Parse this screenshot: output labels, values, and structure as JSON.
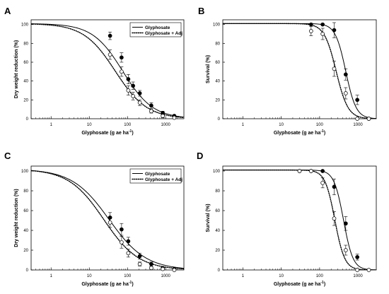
{
  "chart_data": [
    {
      "type": "scatter",
      "panel": "A",
      "xlabel": "Glyphosate (g ae ha",
      "xlabel_sup": "-1",
      "xlabel_end": ")",
      "ylabel": "Dry weight reduction (%)",
      "xscale": "log",
      "xlim": [
        0.3,
        3000
      ],
      "ylim": [
        0,
        105
      ],
      "xticks": [
        1,
        10,
        100,
        1000
      ],
      "yticks": [
        0,
        20,
        40,
        60,
        80,
        100
      ],
      "legend": {
        "position": "top-right",
        "entries": [
          "Glyphosate",
          "Glyphosate + Adj"
        ]
      },
      "series": [
        {
          "name": "Glyphosate",
          "style": "solid",
          "marker": "filled",
          "x": [
            35,
            70,
            105,
            140,
            210,
            420,
            840,
            1680
          ],
          "y": [
            88,
            65,
            42,
            35,
            27,
            14,
            6,
            3
          ],
          "err": [
            4,
            5,
            5,
            4,
            3,
            3,
            2,
            1
          ],
          "curve": {
            "top": 101,
            "ed50": 75,
            "slope": 1.1
          }
        },
        {
          "name": "Glyphosate + Adj",
          "style": "dotted",
          "marker": "open",
          "x": [
            35,
            70,
            105,
            140,
            210,
            420,
            840,
            1680
          ],
          "y": [
            68,
            50,
            30,
            24,
            17,
            8,
            3,
            1
          ],
          "err": [
            5,
            5,
            5,
            4,
            3,
            2,
            2,
            1
          ],
          "curve": {
            "top": 101,
            "ed50": 48,
            "slope": 1.05
          }
        }
      ]
    },
    {
      "type": "scatter",
      "panel": "B",
      "xlabel": "Glyphosate (g ae ha",
      "xlabel_sup": "-1",
      "xlabel_end": ")",
      "ylabel": "Survival (%)",
      "xscale": "log",
      "xlim": [
        0.3,
        3000
      ],
      "ylim": [
        0,
        105
      ],
      "xticks": [
        1,
        10,
        100,
        1000
      ],
      "yticks": [
        0,
        20,
        40,
        60,
        80,
        100
      ],
      "series": [
        {
          "name": "Glyphosate",
          "style": "solid",
          "marker": "filled",
          "x": [
            60,
            120,
            240,
            480,
            960,
            1920
          ],
          "y": [
            100,
            100,
            94,
            47,
            20,
            0
          ],
          "err": [
            0,
            0,
            8,
            6,
            5,
            0
          ],
          "curve": {
            "top": 101,
            "ed50": 480,
            "slope": 3.2
          }
        },
        {
          "name": "Glyphosate + Adj",
          "style": "dotted",
          "marker": "open",
          "x": [
            60,
            120,
            240,
            480,
            960,
            1920
          ],
          "y": [
            93,
            90,
            53,
            27,
            0,
            0
          ],
          "err": [
            5,
            6,
            8,
            6,
            0,
            0
          ],
          "curve": {
            "top": 101,
            "ed50": 270,
            "slope": 2.8
          }
        }
      ]
    },
    {
      "type": "scatter",
      "panel": "C",
      "xlabel": "Glyphosate (g ae ha",
      "xlabel_sup": "-1",
      "xlabel_end": ")",
      "ylabel": "Dry weight reduction (%)",
      "xscale": "log",
      "xlim": [
        0.3,
        3000
      ],
      "ylim": [
        0,
        105
      ],
      "xticks": [
        1,
        10,
        100,
        1000
      ],
      "yticks": [
        0,
        20,
        40,
        60,
        80,
        100
      ],
      "legend": {
        "position": "top-right",
        "entries": [
          "Glyphosate",
          "Glyphosate + Adj"
        ]
      },
      "series": [
        {
          "name": "Glyphosate",
          "style": "solid",
          "marker": "filled",
          "x": [
            35,
            70,
            105,
            210,
            420,
            840,
            1680
          ],
          "y": [
            53,
            41,
            29,
            14,
            6,
            2,
            1
          ],
          "err": [
            5,
            6,
            4,
            3,
            2,
            1,
            1
          ],
          "curve": {
            "top": 102,
            "ed50": 33,
            "slope": 0.9
          }
        },
        {
          "name": "Glyphosate + Adj",
          "style": "dotted",
          "marker": "open",
          "x": [
            35,
            70,
            105,
            210,
            420,
            840,
            1680
          ],
          "y": [
            48,
            28,
            17,
            6,
            2,
            1,
            0
          ],
          "err": [
            5,
            6,
            4,
            2,
            1,
            1,
            0
          ],
          "curve": {
            "top": 102,
            "ed50": 24,
            "slope": 0.95
          }
        }
      ]
    },
    {
      "type": "scatter",
      "panel": "D",
      "xlabel": "Glyphosate (g ae ha",
      "xlabel_sup": "-1",
      "xlabel_end": ")",
      "ylabel": "Survival (%)",
      "xscale": "log",
      "xlim": [
        0.3,
        3000
      ],
      "ylim": [
        0,
        105
      ],
      "xticks": [
        1,
        10,
        100,
        1000
      ],
      "yticks": [
        0,
        20,
        40,
        60,
        80,
        100
      ],
      "series": [
        {
          "name": "Glyphosate",
          "style": "solid",
          "marker": "filled",
          "x": [
            30,
            60,
            120,
            240,
            480,
            960
          ],
          "y": [
            100,
            100,
            100,
            84,
            47,
            13
          ],
          "err": [
            0,
            0,
            0,
            8,
            7,
            3
          ],
          "curve": {
            "top": 101,
            "ed50": 420,
            "slope": 3.5
          }
        },
        {
          "name": "Glyphosate + Adj",
          "style": "dotted",
          "marker": "open",
          "x": [
            30,
            60,
            120,
            240,
            480,
            960,
            1920
          ],
          "y": [
            100,
            100,
            88,
            52,
            20,
            0,
            0
          ],
          "err": [
            0,
            0,
            5,
            7,
            5,
            0,
            0
          ],
          "curve": {
            "top": 101,
            "ed50": 250,
            "slope": 3.4
          }
        }
      ]
    }
  ]
}
